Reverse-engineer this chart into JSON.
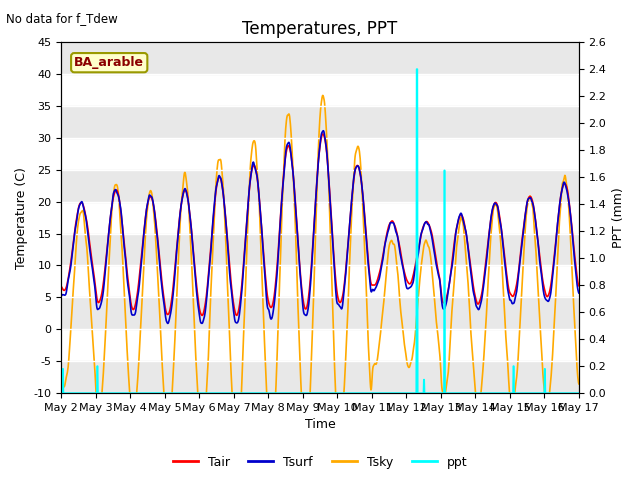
{
  "title": "Temperatures, PPT",
  "subtitle": "No data for f_Tdew",
  "station_label": "BA_arable",
  "xlabel": "Time",
  "ylabel_left": "Temperature (C)",
  "ylabel_right": "PPT (mm)",
  "ylim_left": [
    -10,
    45
  ],
  "ylim_right": [
    0.0,
    2.6
  ],
  "yticks_left": [
    -10,
    -5,
    0,
    5,
    10,
    15,
    20,
    25,
    30,
    35,
    40,
    45
  ],
  "yticks_right": [
    0.0,
    0.2,
    0.4,
    0.6,
    0.8,
    1.0,
    1.2,
    1.4,
    1.6,
    1.8,
    2.0,
    2.2,
    2.4,
    2.6
  ],
  "xtick_labels": [
    "May 2",
    "May 3",
    "May 4",
    "May 5",
    "May 6",
    "May 7",
    "May 8",
    "May 9",
    "May 10",
    "May 11",
    "May 12",
    "May 13",
    "May 14",
    "May 15",
    "May 16",
    "May 17"
  ],
  "line_colors": {
    "Tair": "#ff0000",
    "Tsurf": "#0000cc",
    "Tsky": "#ffaa00",
    "ppt": "#00ffff"
  },
  "line_widths": {
    "Tair": 1.2,
    "Tsurf": 1.2,
    "Tsky": 1.2,
    "ppt": 1.2
  },
  "background_color": "#ffffff",
  "band_color": "#e8e8e8",
  "title_fontsize": 12,
  "label_fontsize": 9,
  "tick_fontsize": 8
}
